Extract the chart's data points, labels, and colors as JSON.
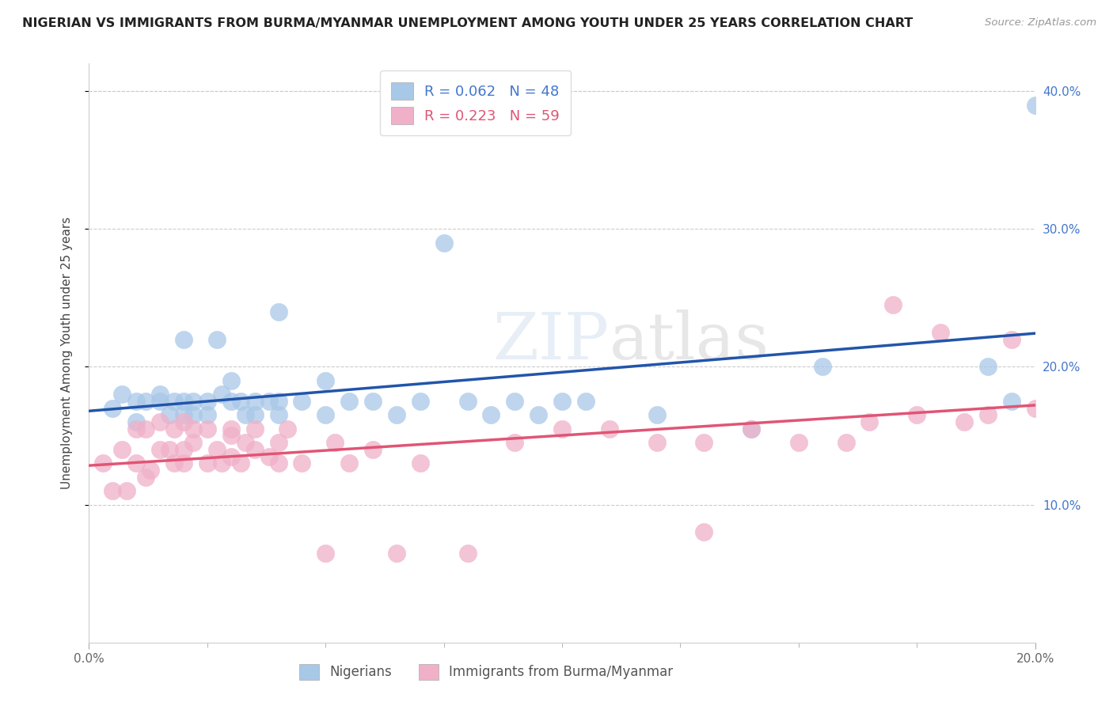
{
  "title": "NIGERIAN VS IMMIGRANTS FROM BURMA/MYANMAR UNEMPLOYMENT AMONG YOUTH UNDER 25 YEARS CORRELATION CHART",
  "source": "Source: ZipAtlas.com",
  "ylabel": "Unemployment Among Youth under 25 years",
  "legend1_name": "Nigerians",
  "legend2_name": "Immigrants from Burma/Myanmar",
  "blue_color": "#a8c8e8",
  "pink_color": "#f0b0c8",
  "blue_edge_color": "#a8c8e8",
  "pink_edge_color": "#f0b0c8",
  "blue_line_color": "#2255aa",
  "pink_line_color": "#e05575",
  "legend_blue_color": "#4477cc",
  "legend_pink_color": "#e05575",
  "R1": 0.062,
  "N1": 48,
  "R2": 0.223,
  "N2": 59,
  "xmin": 0.0,
  "xmax": 0.2,
  "ymin": 0.0,
  "ymax": 0.42,
  "blue_x": [
    0.005,
    0.007,
    0.01,
    0.01,
    0.012,
    0.015,
    0.015,
    0.017,
    0.018,
    0.02,
    0.02,
    0.02,
    0.022,
    0.022,
    0.025,
    0.025,
    0.027,
    0.028,
    0.03,
    0.03,
    0.032,
    0.033,
    0.035,
    0.035,
    0.038,
    0.04,
    0.04,
    0.04,
    0.045,
    0.05,
    0.05,
    0.055,
    0.06,
    0.065,
    0.07,
    0.075,
    0.08,
    0.085,
    0.09,
    0.095,
    0.1,
    0.105,
    0.12,
    0.14,
    0.155,
    0.19,
    0.195,
    0.2
  ],
  "blue_y": [
    0.17,
    0.18,
    0.175,
    0.16,
    0.175,
    0.175,
    0.18,
    0.165,
    0.175,
    0.175,
    0.165,
    0.22,
    0.165,
    0.175,
    0.175,
    0.165,
    0.22,
    0.18,
    0.175,
    0.19,
    0.175,
    0.165,
    0.175,
    0.165,
    0.175,
    0.24,
    0.165,
    0.175,
    0.175,
    0.165,
    0.19,
    0.175,
    0.175,
    0.165,
    0.175,
    0.29,
    0.175,
    0.165,
    0.175,
    0.165,
    0.175,
    0.175,
    0.165,
    0.155,
    0.2,
    0.2,
    0.175,
    0.39
  ],
  "pink_x": [
    0.003,
    0.005,
    0.007,
    0.008,
    0.01,
    0.01,
    0.012,
    0.012,
    0.013,
    0.015,
    0.015,
    0.017,
    0.018,
    0.018,
    0.02,
    0.02,
    0.02,
    0.022,
    0.022,
    0.025,
    0.025,
    0.027,
    0.028,
    0.03,
    0.03,
    0.03,
    0.032,
    0.033,
    0.035,
    0.035,
    0.038,
    0.04,
    0.04,
    0.042,
    0.045,
    0.05,
    0.052,
    0.055,
    0.06,
    0.065,
    0.07,
    0.08,
    0.09,
    0.1,
    0.11,
    0.12,
    0.13,
    0.14,
    0.15,
    0.16,
    0.165,
    0.17,
    0.175,
    0.18,
    0.185,
    0.19,
    0.195,
    0.2,
    0.13
  ],
  "pink_y": [
    0.13,
    0.11,
    0.14,
    0.11,
    0.13,
    0.155,
    0.12,
    0.155,
    0.125,
    0.14,
    0.16,
    0.14,
    0.13,
    0.155,
    0.13,
    0.14,
    0.16,
    0.145,
    0.155,
    0.13,
    0.155,
    0.14,
    0.13,
    0.15,
    0.135,
    0.155,
    0.13,
    0.145,
    0.14,
    0.155,
    0.135,
    0.145,
    0.13,
    0.155,
    0.13,
    0.065,
    0.145,
    0.13,
    0.14,
    0.065,
    0.13,
    0.065,
    0.145,
    0.155,
    0.155,
    0.145,
    0.145,
    0.155,
    0.145,
    0.145,
    0.16,
    0.245,
    0.165,
    0.225,
    0.16,
    0.165,
    0.22,
    0.17,
    0.08
  ]
}
